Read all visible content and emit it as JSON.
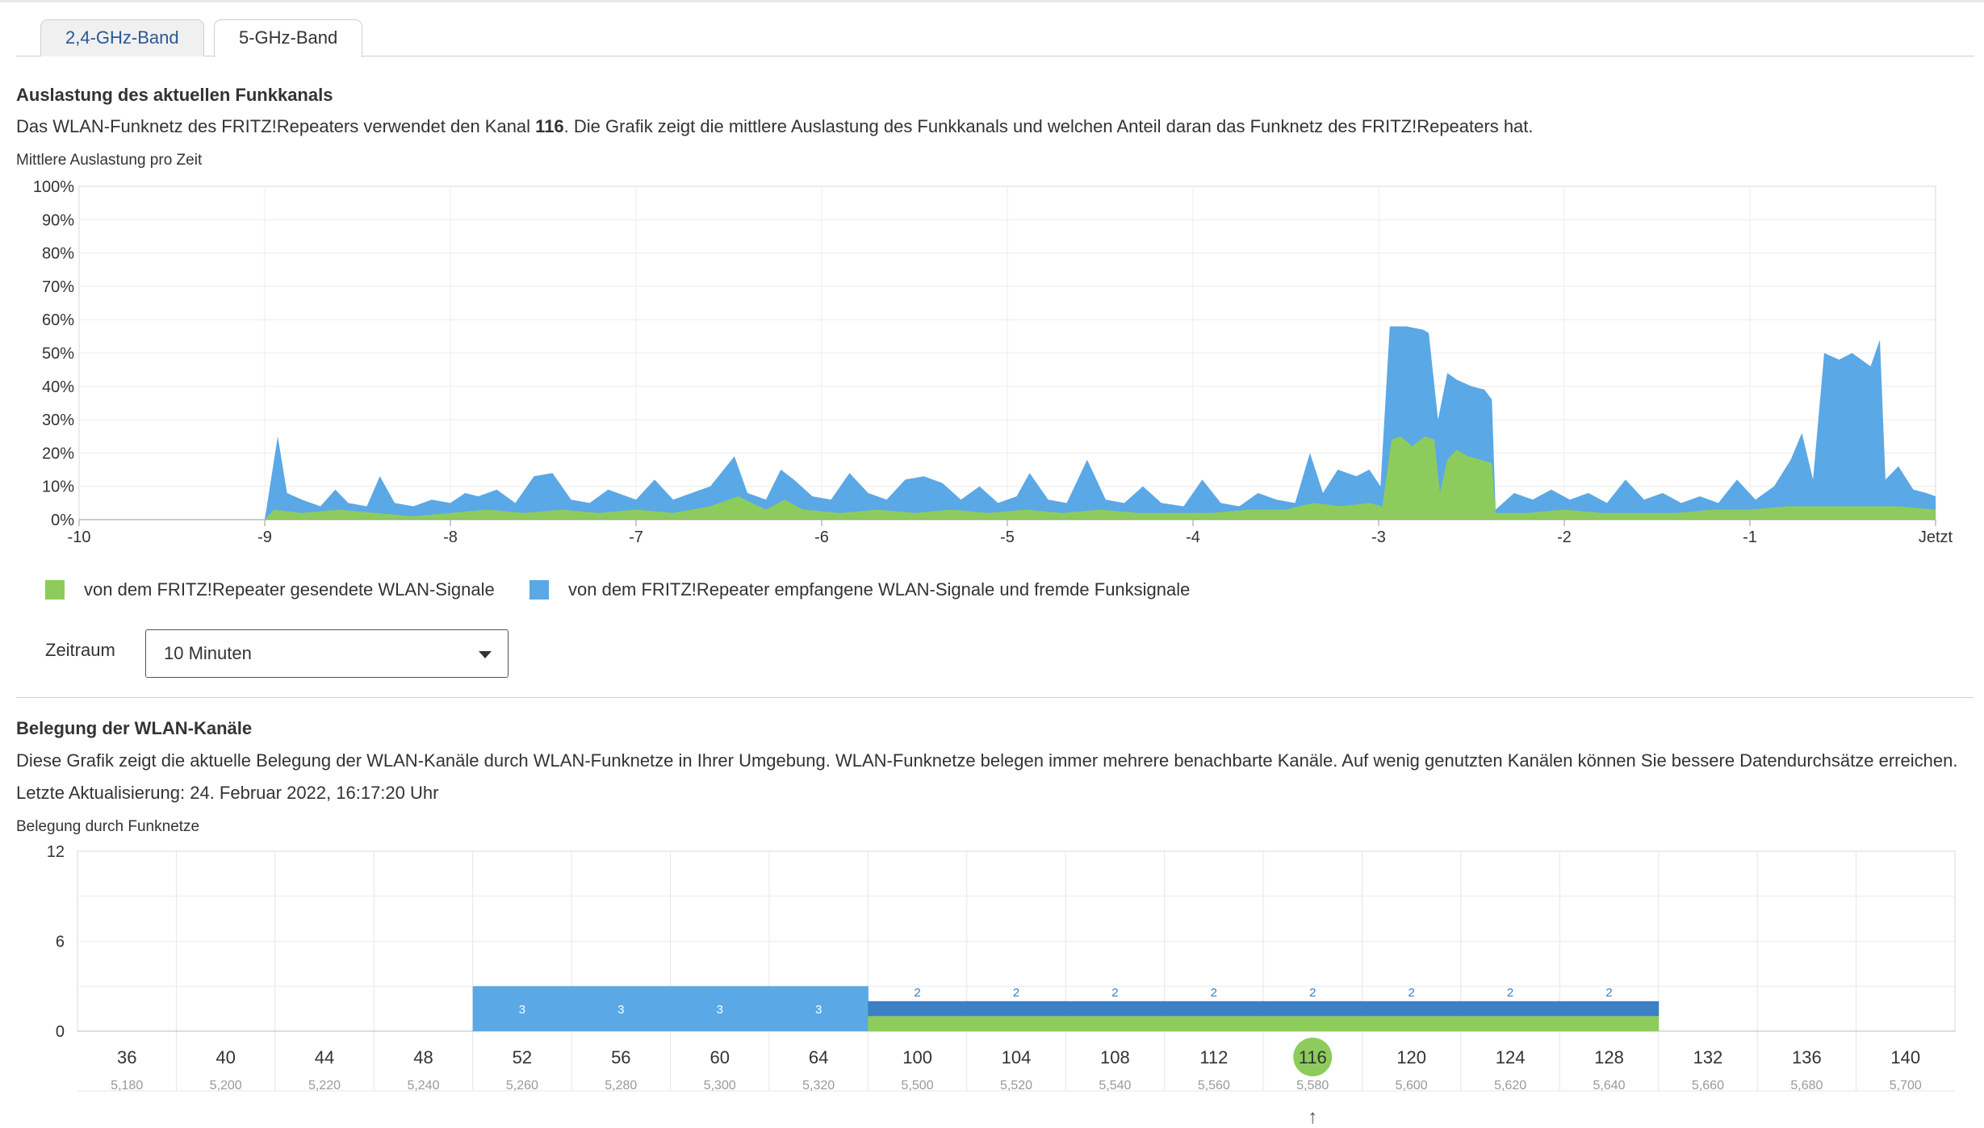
{
  "tabs": [
    {
      "label": "2,4-GHz-Band",
      "active": false
    },
    {
      "label": "5-GHz-Band",
      "active": true
    }
  ],
  "section1": {
    "title": "Auslastung des aktuellen Funkkanals",
    "desc_before": "Das WLAN-Funknetz des FRITZ!Repeaters verwendet den Kanal ",
    "desc_channel": "116",
    "desc_after": ". Die Grafik zeigt die mittlere Auslastung des Funkkanals und welchen Anteil daran das Funknetz des FRITZ!Repeaters hat.",
    "chart_subtitle": "Mittlere Auslastung pro Zeit",
    "legend": {
      "green": "von dem FRITZ!Repeater gesendete WLAN-Signale",
      "blue": "von dem FRITZ!Repeater empfangene WLAN-Signale und fremde Funksignale"
    },
    "zeitraum_label": "Zeitraum",
    "zeitraum_value": "10 Minuten"
  },
  "section2": {
    "title": "Belegung der WLAN-Kanäle",
    "desc": "Diese Grafik zeigt die aktuelle Belegung der WLAN-Kanäle durch WLAN-Funknetze in Ihrer Umgebung. WLAN-Funknetze belegen immer mehrere benachbarte Kanäle. Auf wenig genutzten Kanälen können Sie bessere Datendurchsätze erreichen.",
    "updated": "Letzte Aktualisierung: 24. Februar 2022, 16:17:20 Uhr",
    "chart_subtitle": "Belegung durch Funknetze",
    "current_channel_marker": "↑"
  },
  "colors": {
    "green": "#8dcc5c",
    "blue": "#5aa8e6",
    "dark_blue": "#3b7fc4",
    "grid": "#e6e6e6",
    "current_channel": "#8dcc5c"
  },
  "chart_data": [
    {
      "type": "area",
      "stacked": true,
      "x_ticks": [
        "-10",
        "-9",
        "-8",
        "-7",
        "-6",
        "-5",
        "-4",
        "-3",
        "-2",
        "-1",
        "Jetzt"
      ],
      "xlim": [
        -10,
        0
      ],
      "y_ticks": [
        "0%",
        "10%",
        "20%",
        "30%",
        "40%",
        "50%",
        "60%",
        "70%",
        "80%",
        "90%",
        "100%"
      ],
      "ylim": [
        0,
        100
      ],
      "grid": true,
      "series": [
        {
          "name": "von dem FRITZ!Repeater gesendete WLAN-Signale",
          "color": "#8dcc5c",
          "points": [
            [
              -9.0,
              0
            ],
            [
              -8.95,
              3
            ],
            [
              -8.8,
              2
            ],
            [
              -8.6,
              3
            ],
            [
              -8.4,
              2
            ],
            [
              -8.2,
              1
            ],
            [
              -8.0,
              2
            ],
            [
              -7.8,
              3
            ],
            [
              -7.6,
              2
            ],
            [
              -7.4,
              3
            ],
            [
              -7.2,
              2
            ],
            [
              -7.0,
              3
            ],
            [
              -6.8,
              2
            ],
            [
              -6.6,
              4
            ],
            [
              -6.45,
              7
            ],
            [
              -6.3,
              3
            ],
            [
              -6.2,
              6
            ],
            [
              -6.1,
              3
            ],
            [
              -5.9,
              2
            ],
            [
              -5.7,
              3
            ],
            [
              -5.5,
              2
            ],
            [
              -5.3,
              3
            ],
            [
              -5.1,
              2
            ],
            [
              -4.9,
              3
            ],
            [
              -4.7,
              2
            ],
            [
              -4.5,
              3
            ],
            [
              -4.3,
              2
            ],
            [
              -4.1,
              2
            ],
            [
              -3.9,
              2
            ],
            [
              -3.7,
              3
            ],
            [
              -3.5,
              3
            ],
            [
              -3.35,
              5
            ],
            [
              -3.2,
              4
            ],
            [
              -3.05,
              5
            ],
            [
              -2.98,
              4
            ],
            [
              -2.93,
              24
            ],
            [
              -2.88,
              25
            ],
            [
              -2.82,
              22
            ],
            [
              -2.75,
              25
            ],
            [
              -2.7,
              24
            ],
            [
              -2.67,
              8
            ],
            [
              -2.63,
              18
            ],
            [
              -2.58,
              21
            ],
            [
              -2.52,
              19
            ],
            [
              -2.45,
              18
            ],
            [
              -2.39,
              17
            ],
            [
              -2.37,
              2
            ],
            [
              -2.2,
              2
            ],
            [
              -2.0,
              3
            ],
            [
              -1.8,
              2
            ],
            [
              -1.6,
              2
            ],
            [
              -1.4,
              2
            ],
            [
              -1.2,
              3
            ],
            [
              -1.0,
              3
            ],
            [
              -0.8,
              4
            ],
            [
              -0.6,
              4
            ],
            [
              -0.4,
              4
            ],
            [
              -0.2,
              4
            ],
            [
              0.0,
              3
            ]
          ]
        },
        {
          "name": "von dem FRITZ!Repeater empfangene WLAN-Signale und fremde Funksignale",
          "color": "#5aa8e6",
          "points": [
            [
              -9.0,
              0
            ],
            [
              -8.93,
              25
            ],
            [
              -8.88,
              8
            ],
            [
              -8.8,
              6
            ],
            [
              -8.7,
              4
            ],
            [
              -8.62,
              9
            ],
            [
              -8.55,
              5
            ],
            [
              -8.45,
              4
            ],
            [
              -8.38,
              13
            ],
            [
              -8.3,
              5
            ],
            [
              -8.2,
              4
            ],
            [
              -8.1,
              6
            ],
            [
              -8.0,
              5
            ],
            [
              -7.92,
              8
            ],
            [
              -7.85,
              7
            ],
            [
              -7.75,
              9
            ],
            [
              -7.65,
              5
            ],
            [
              -7.55,
              13
            ],
            [
              -7.45,
              14
            ],
            [
              -7.35,
              6
            ],
            [
              -7.25,
              5
            ],
            [
              -7.15,
              9
            ],
            [
              -7.0,
              6
            ],
            [
              -6.9,
              12
            ],
            [
              -6.8,
              6
            ],
            [
              -6.7,
              8
            ],
            [
              -6.6,
              10
            ],
            [
              -6.47,
              19
            ],
            [
              -6.4,
              8
            ],
            [
              -6.3,
              6
            ],
            [
              -6.22,
              15
            ],
            [
              -6.15,
              12
            ],
            [
              -6.05,
              7
            ],
            [
              -5.95,
              6
            ],
            [
              -5.85,
              14
            ],
            [
              -5.75,
              8
            ],
            [
              -5.65,
              6
            ],
            [
              -5.55,
              12
            ],
            [
              -5.45,
              13
            ],
            [
              -5.35,
              11
            ],
            [
              -5.25,
              6
            ],
            [
              -5.15,
              10
            ],
            [
              -5.05,
              5
            ],
            [
              -4.95,
              7
            ],
            [
              -4.88,
              14
            ],
            [
              -4.78,
              6
            ],
            [
              -4.68,
              5
            ],
            [
              -4.57,
              18
            ],
            [
              -4.47,
              6
            ],
            [
              -4.37,
              5
            ],
            [
              -4.27,
              10
            ],
            [
              -4.17,
              5
            ],
            [
              -4.05,
              4
            ],
            [
              -3.95,
              12
            ],
            [
              -3.85,
              5
            ],
            [
              -3.75,
              4
            ],
            [
              -3.65,
              8
            ],
            [
              -3.55,
              6
            ],
            [
              -3.45,
              5
            ],
            [
              -3.37,
              20
            ],
            [
              -3.3,
              8
            ],
            [
              -3.22,
              15
            ],
            [
              -3.12,
              13
            ],
            [
              -3.05,
              15
            ],
            [
              -2.99,
              10
            ],
            [
              -2.94,
              58
            ],
            [
              -2.85,
              58
            ],
            [
              -2.76,
              57
            ],
            [
              -2.73,
              56
            ],
            [
              -2.68,
              30
            ],
            [
              -2.63,
              44
            ],
            [
              -2.58,
              42
            ],
            [
              -2.5,
              40
            ],
            [
              -2.43,
              39
            ],
            [
              -2.39,
              36
            ],
            [
              -2.37,
              3
            ],
            [
              -2.27,
              8
            ],
            [
              -2.17,
              6
            ],
            [
              -2.07,
              9
            ],
            [
              -1.97,
              6
            ],
            [
              -1.87,
              8
            ],
            [
              -1.77,
              5
            ],
            [
              -1.67,
              12
            ],
            [
              -1.57,
              6
            ],
            [
              -1.47,
              8
            ],
            [
              -1.37,
              5
            ],
            [
              -1.27,
              7
            ],
            [
              -1.17,
              5
            ],
            [
              -1.07,
              12
            ],
            [
              -0.97,
              6
            ],
            [
              -0.87,
              10
            ],
            [
              -0.78,
              18
            ],
            [
              -0.72,
              26
            ],
            [
              -0.66,
              12
            ],
            [
              -0.6,
              50
            ],
            [
              -0.52,
              48
            ],
            [
              -0.45,
              50
            ],
            [
              -0.35,
              46
            ],
            [
              -0.3,
              54
            ],
            [
              -0.27,
              12
            ],
            [
              -0.2,
              16
            ],
            [
              -0.12,
              9
            ],
            [
              -0.05,
              8
            ],
            [
              0.0,
              7
            ]
          ]
        }
      ]
    },
    {
      "type": "bar",
      "ylim": [
        0,
        12
      ],
      "y_ticks": [
        "0",
        "6",
        "12"
      ],
      "current_channel": "116",
      "categories": [
        "36",
        "40",
        "44",
        "48",
        "52",
        "56",
        "60",
        "64",
        "100",
        "104",
        "108",
        "112",
        "116",
        "120",
        "124",
        "128",
        "132",
        "136",
        "140"
      ],
      "frequencies": [
        "5,180",
        "5,200",
        "5,220",
        "5,240",
        "5,260",
        "5,280",
        "5,300",
        "5,320",
        "5,500",
        "5,520",
        "5,540",
        "5,560",
        "5,580",
        "5,600",
        "5,620",
        "5,640",
        "5,660",
        "5,680",
        "5,700"
      ],
      "values": [
        0,
        0,
        0,
        0,
        3,
        3,
        3,
        3,
        2,
        2,
        2,
        2,
        2,
        2,
        2,
        2,
        0,
        0,
        0
      ],
      "labels": [
        "",
        "",
        "",
        "",
        "3",
        "3",
        "3",
        "3",
        "2",
        "2",
        "2",
        "2",
        "2",
        "2",
        "2",
        "2",
        "",
        "",
        ""
      ]
    }
  ]
}
